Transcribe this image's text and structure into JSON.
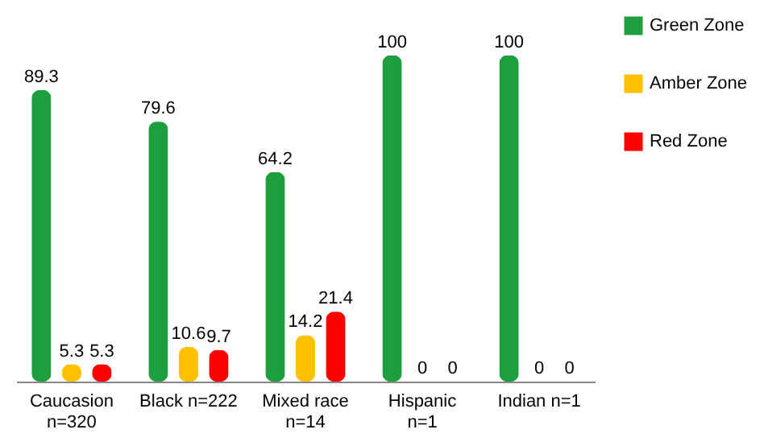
{
  "chart_data": {
    "type": "bar",
    "categories": [
      "Caucasion\nn=320",
      "Black n=222",
      "Mixed race\nn=14",
      "Hispanic\nn=1",
      "Indian n=1"
    ],
    "series": [
      {
        "name": "Green Zone",
        "color": "#1e9e3e",
        "values": [
          89.3,
          79.6,
          64.2,
          100,
          100
        ]
      },
      {
        "name": "Amber Zone",
        "color": "#ffc000",
        "values": [
          5.3,
          10.6,
          14.2,
          0,
          0
        ]
      },
      {
        "name": "Red Zone",
        "color": "#ff0000",
        "values": [
          5.3,
          9.7,
          21.4,
          0,
          0
        ]
      }
    ],
    "data_labels": true,
    "legend": "right",
    "grid": false
  }
}
